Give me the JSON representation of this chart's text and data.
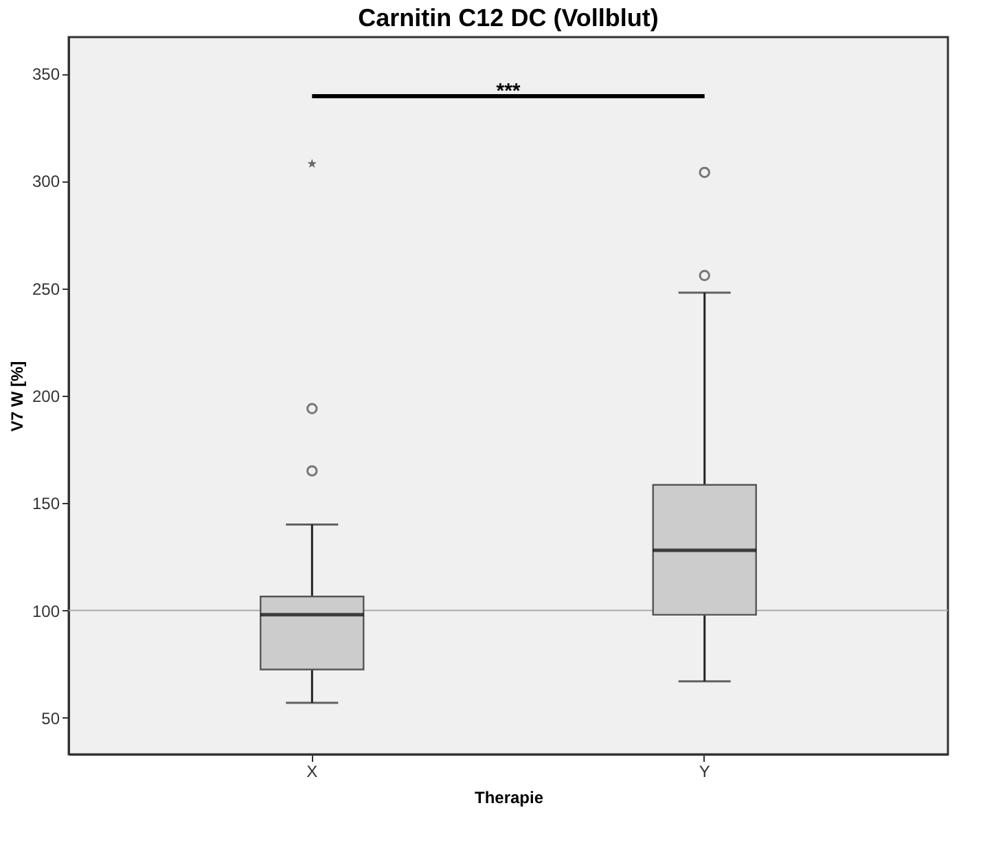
{
  "chart_data": {
    "type": "box",
    "title": "Carnitin C12 DC (Vollblut)",
    "xlabel": "Therapie",
    "ylabel": "V7 W [%]",
    "categories": [
      "X",
      "Y"
    ],
    "color": "#cccccc",
    "boxes": [
      {
        "low": 57,
        "q1": 72.5,
        "median": 98,
        "q3": 106.5,
        "high": 140,
        "outliers": [
          165,
          194
        ]
      },
      {
        "low": 67,
        "q1": 98,
        "median": 128,
        "q3": 158.5,
        "high": 248,
        "outliers": [
          256,
          304
        ]
      }
    ],
    "series": [
      {
        "type": "scatter",
        "x": [
          "X"
        ],
        "values": [
          308
        ],
        "marker": "star",
        "color": "#333333"
      }
    ],
    "ylim": [
      33,
      367
    ],
    "yticks": [
      50,
      100,
      150,
      200,
      250,
      300,
      350
    ],
    "ref_lines": [
      {
        "axis": "y",
        "value": 100,
        "color": "#a8a8a8"
      }
    ],
    "annotations": [
      "***"
    ]
  }
}
